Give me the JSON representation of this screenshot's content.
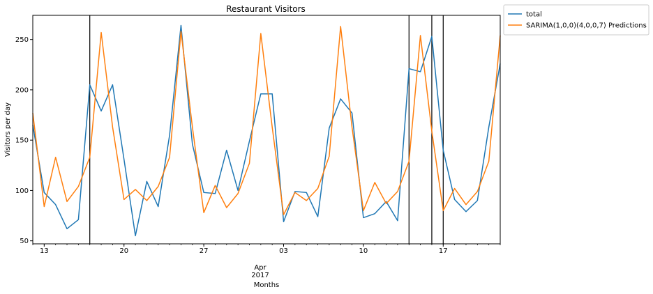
{
  "chart_data": {
    "type": "line",
    "title": "Restaurant Visitors",
    "xlabel": "Months",
    "ylabel": "Visitors per day",
    "x_start": "2017-03-12",
    "x_end": "2017-04-22",
    "ylim": [
      47,
      274
    ],
    "yticks": [
      50,
      100,
      150,
      200,
      250
    ],
    "xticks": [
      {
        "date": "2017-03-13",
        "label": "13"
      },
      {
        "date": "2017-03-20",
        "label": "20"
      },
      {
        "date": "2017-03-27",
        "label": "27"
      },
      {
        "date": "2017-04-03",
        "label": "03"
      },
      {
        "date": "2017-04-10",
        "label": "10"
      },
      {
        "date": "2017-04-17",
        "label": "17"
      }
    ],
    "month_label": "Apr",
    "year_label": "2017",
    "vlines": [
      "2017-03-17",
      "2017-04-14",
      "2017-04-16",
      "2017-04-17"
    ],
    "legend_position": "outside-top-right",
    "series": [
      {
        "name": "total",
        "color": "#1f77b4",
        "x": [
          "2017-03-12",
          "2017-03-13",
          "2017-03-14",
          "2017-03-15",
          "2017-03-16",
          "2017-03-17",
          "2017-03-18",
          "2017-03-19",
          "2017-03-20",
          "2017-03-21",
          "2017-03-22",
          "2017-03-23",
          "2017-03-24",
          "2017-03-25",
          "2017-03-26",
          "2017-03-27",
          "2017-03-28",
          "2017-03-29",
          "2017-03-30",
          "2017-03-31",
          "2017-04-01",
          "2017-04-02",
          "2017-04-03",
          "2017-04-04",
          "2017-04-05",
          "2017-04-06",
          "2017-04-07",
          "2017-04-08",
          "2017-04-09",
          "2017-04-10",
          "2017-04-11",
          "2017-04-12",
          "2017-04-13",
          "2017-04-14",
          "2017-04-15",
          "2017-04-16",
          "2017-04-17",
          "2017-04-18",
          "2017-04-19",
          "2017-04-20",
          "2017-04-21",
          "2017-04-22"
        ],
        "y": [
          165,
          98,
          86,
          62,
          71,
          205,
          179,
          205,
          131,
          55,
          109,
          84,
          155,
          264,
          146,
          98,
          97,
          140,
          100,
          149,
          196,
          196,
          69,
          99,
          98,
          74,
          162,
          191,
          177,
          73,
          77,
          89,
          70,
          221,
          218,
          253,
          140,
          91,
          79,
          90,
          163,
          226
        ]
      },
      {
        "name": "SARIMA(1,0,0)(4,0,0,7) Predictions",
        "color": "#ff7f0e",
        "x": [
          "2017-03-12",
          "2017-03-13",
          "2017-03-14",
          "2017-03-15",
          "2017-03-16",
          "2017-03-17",
          "2017-03-18",
          "2017-03-19",
          "2017-03-20",
          "2017-03-21",
          "2017-03-22",
          "2017-03-23",
          "2017-03-24",
          "2017-03-25",
          "2017-03-26",
          "2017-03-27",
          "2017-03-28",
          "2017-03-29",
          "2017-03-30",
          "2017-03-31",
          "2017-04-01",
          "2017-04-02",
          "2017-04-03",
          "2017-04-04",
          "2017-04-05",
          "2017-04-06",
          "2017-04-07",
          "2017-04-08",
          "2017-04-09",
          "2017-04-10",
          "2017-04-11",
          "2017-04-12",
          "2017-04-13",
          "2017-04-14",
          "2017-04-15",
          "2017-04-16",
          "2017-04-17",
          "2017-04-18",
          "2017-04-19",
          "2017-04-20",
          "2017-04-21",
          "2017-04-22"
        ],
        "y": [
          177,
          84,
          133,
          89,
          104,
          133,
          257,
          163,
          91,
          101,
          90,
          104,
          133,
          258,
          163,
          78,
          105,
          83,
          97,
          127,
          256,
          163,
          76,
          98,
          90,
          102,
          134,
          263,
          163,
          80,
          108,
          87,
          99,
          129,
          254,
          159,
          80,
          102,
          86,
          99,
          129,
          254
        ]
      }
    ]
  }
}
